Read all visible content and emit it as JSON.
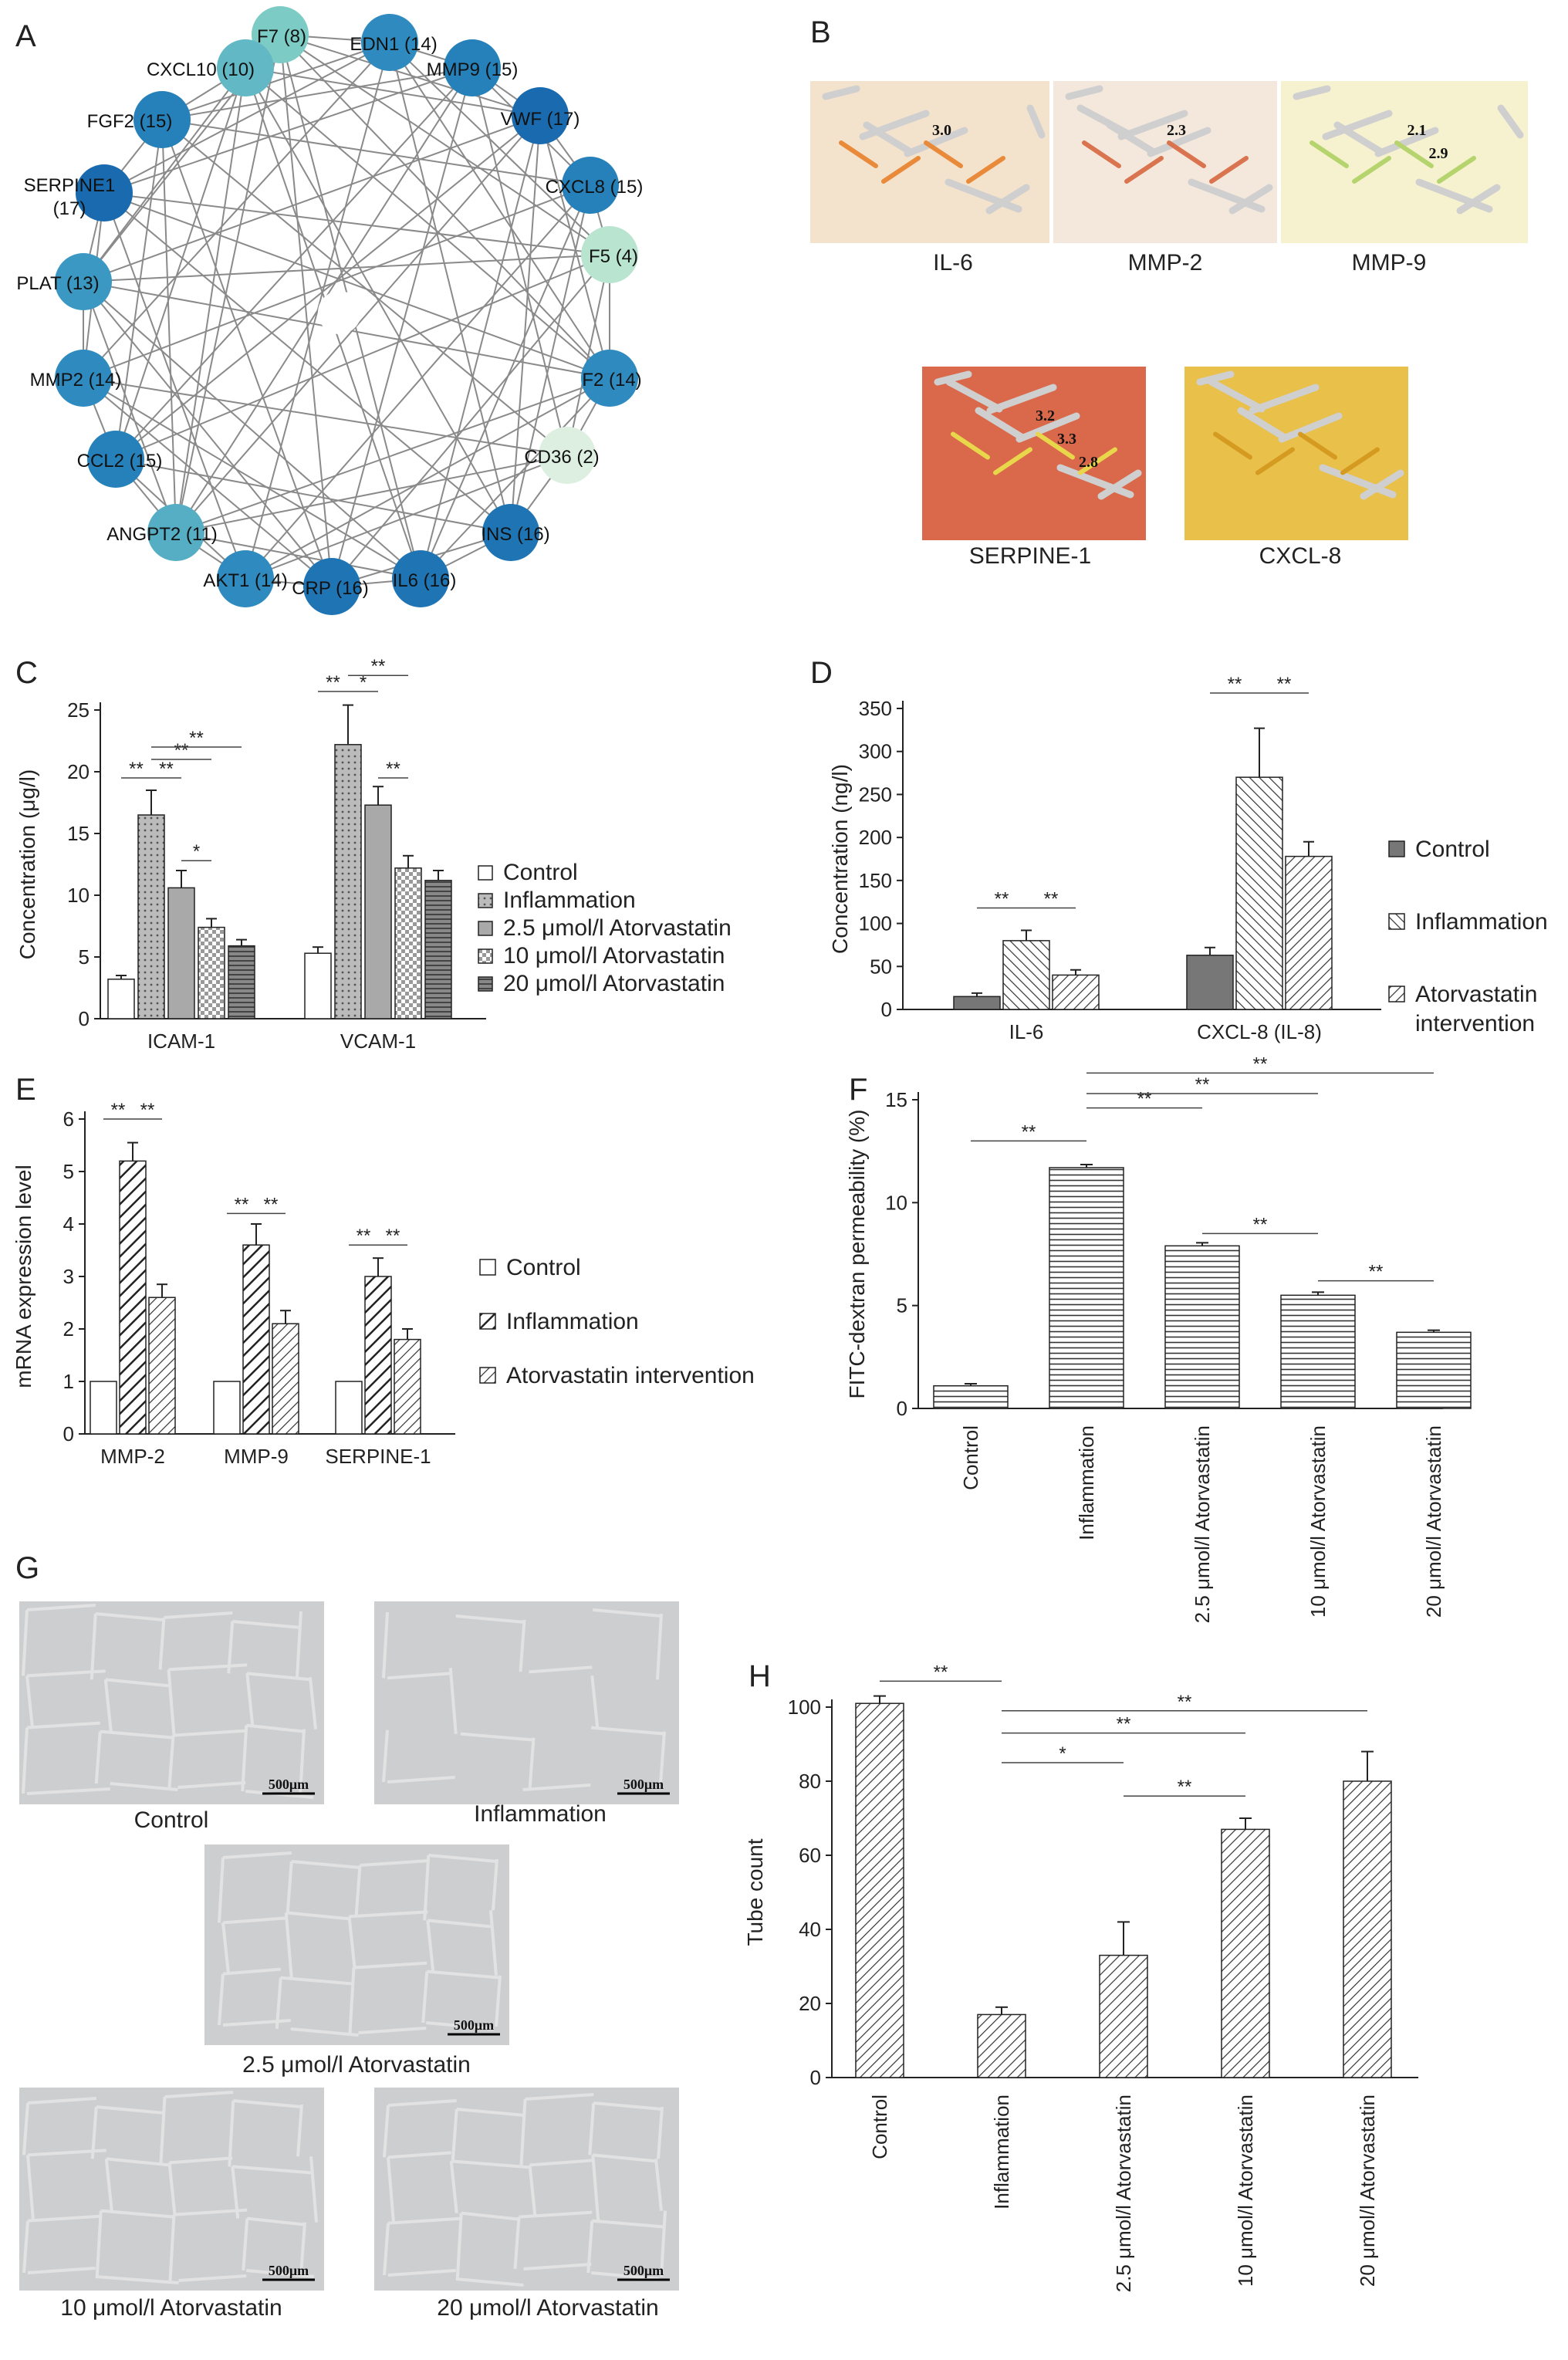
{
  "panel_labels": [
    "A",
    "B",
    "C",
    "D",
    "E",
    "F",
    "G",
    "H"
  ],
  "network": {
    "nodes": [
      {
        "label": "F7 (8)",
        "color": "#7ccbc5"
      },
      {
        "label": "EDN1 (14)",
        "color": "#2f8bbf"
      },
      {
        "label": "MMP9 (15)",
        "color": "#2680ba"
      },
      {
        "label": "VWF (17)",
        "color": "#1a6aaf"
      },
      {
        "label": "CXCL8 (15)",
        "color": "#2680ba"
      },
      {
        "label": "F5 (4)",
        "color": "#b9e4d0"
      },
      {
        "label": "F2 (14)",
        "color": "#2f8bbf"
      },
      {
        "label": "CD36 (2)",
        "color": "#dcefe0"
      },
      {
        "label": "INS (16)",
        "color": "#1f74b4"
      },
      {
        "label": "IL6 (16)",
        "color": "#1f74b4"
      },
      {
        "label": "CRP (16)",
        "color": "#1f74b4"
      },
      {
        "label": "AKT1 (14)",
        "color": "#2f8bbf"
      },
      {
        "label": "ANGPT2 (11)",
        "color": "#56aec4"
      },
      {
        "label": "CCL2 (15)",
        "color": "#2680ba"
      },
      {
        "label": "MMP2 (14)",
        "color": "#2f8bbf"
      },
      {
        "label": "PLAT (13)",
        "color": "#3b98c2"
      },
      {
        "label": "SERPINE1",
        "label2": "(17)",
        "color": "#1a6aaf"
      },
      {
        "label": "FGF2 (15)",
        "color": "#2680ba"
      },
      {
        "label": "CXCL10 (10)",
        "color": "#62b8c4"
      }
    ]
  },
  "docking": {
    "captions": [
      "IL-6",
      "MMP-2",
      "MMP-9",
      "SERPINE-1",
      "CXCL-8"
    ],
    "distances": [
      [
        "3.0"
      ],
      [
        "2.3"
      ],
      [
        "2.1",
        "2.9"
      ],
      [
        "3.2",
        "3.3",
        "2.8"
      ],
      []
    ]
  },
  "micrographs": {
    "captions": [
      "Control",
      "Inflammation",
      "2.5 μmol/l Atorvastatin",
      "10 μmol/l Atorvastatin",
      "20 μmol/l Atorvastatin"
    ],
    "scale_label": "500μm"
  },
  "chart_data": [
    {
      "panel": "C",
      "type": "bar",
      "ylabel": "Concentration (μg/l)",
      "ylim": [
        0,
        25
      ],
      "yticks": [
        0,
        5,
        10,
        15,
        20,
        25
      ],
      "categories": [
        "ICAM-1",
        "VCAM-1"
      ],
      "series": [
        {
          "name": "Control",
          "values": [
            3.2,
            5.3
          ],
          "errors": [
            0.3,
            0.5
          ]
        },
        {
          "name": "Inflammation",
          "values": [
            16.5,
            22.2
          ],
          "errors": [
            2.0,
            3.2
          ]
        },
        {
          "name": "2.5 μmol/l Atorvastatin",
          "values": [
            10.6,
            17.3
          ],
          "errors": [
            1.4,
            1.5
          ]
        },
        {
          "name": "10 μmol/l Atorvastatin",
          "values": [
            7.4,
            12.2
          ],
          "errors": [
            0.7,
            1.0
          ]
        },
        {
          "name": "20 μmol/l Atorvastatin",
          "values": [
            5.9,
            11.2
          ],
          "errors": [
            0.5,
            0.8
          ]
        }
      ],
      "significance": [
        "**",
        "**",
        "**",
        "**",
        "*",
        "**",
        "*",
        "**",
        "**"
      ],
      "legend": "right"
    },
    {
      "panel": "D",
      "type": "bar",
      "ylabel": "Concentration (ng/l)",
      "ylim": [
        0,
        350
      ],
      "yticks": [
        0,
        50,
        100,
        150,
        200,
        250,
        300,
        350
      ],
      "categories": [
        "IL-6",
        "CXCL-8 (IL-8)"
      ],
      "series": [
        {
          "name": "Control",
          "values": [
            15,
            63
          ],
          "errors": [
            4,
            9
          ]
        },
        {
          "name": "Inflammation",
          "values": [
            80,
            270
          ],
          "errors": [
            12,
            57
          ]
        },
        {
          "name": "Atorvastatin intervention",
          "name2": "intervention",
          "name1": "Atorvastatin",
          "values": [
            40,
            178
          ],
          "errors": [
            6,
            17
          ]
        }
      ],
      "significance": [
        "**",
        "**",
        "**",
        "**"
      ],
      "legend": "right"
    },
    {
      "panel": "E",
      "type": "bar",
      "ylabel": "mRNA expression level",
      "ylim": [
        0,
        6
      ],
      "yticks": [
        0,
        1,
        2,
        3,
        4,
        5,
        6
      ],
      "categories": [
        "MMP-2",
        "MMP-9",
        "SERPINE-1"
      ],
      "series": [
        {
          "name": "Control",
          "values": [
            1,
            1,
            1
          ],
          "errors": [
            0,
            0,
            0
          ]
        },
        {
          "name": "Inflammation",
          "values": [
            5.2,
            3.6,
            3.0
          ],
          "errors": [
            0.35,
            0.4,
            0.35
          ]
        },
        {
          "name": "Atorvastatin intervention",
          "values": [
            2.6,
            2.1,
            1.8
          ],
          "errors": [
            0.25,
            0.25,
            0.2
          ]
        }
      ],
      "significance": [
        "**",
        "**",
        "**",
        "**",
        "**",
        "**"
      ],
      "legend": "right"
    },
    {
      "panel": "F",
      "type": "bar",
      "ylabel": "FITC-dextran permeability (%)",
      "ylim": [
        0,
        15
      ],
      "yticks": [
        0,
        5,
        10,
        15
      ],
      "categories": [
        "Control",
        "Inflammation",
        "2.5 μmol/l Atorvastatin",
        "10 μmol/l Atorvastatin",
        "20 μmol/l Atorvastatin"
      ],
      "values": [
        1.1,
        11.7,
        7.9,
        5.5,
        3.7
      ],
      "errors": [
        0.1,
        0.15,
        0.15,
        0.15,
        0.1
      ],
      "significance": [
        "**",
        "**",
        "**",
        "**",
        "**",
        "**"
      ]
    },
    {
      "panel": "H",
      "type": "bar",
      "ylabel": "Tube count",
      "ylim": [
        0,
        100
      ],
      "yticks": [
        0,
        20,
        40,
        60,
        80,
        100
      ],
      "categories": [
        "Control",
        "Inflammation",
        "2.5 μmol/l Atorvastatin",
        "10 μmol/l Atorvastatin",
        "20 μmol/l Atorvastatin"
      ],
      "values": [
        101,
        17,
        33,
        67,
        80
      ],
      "errors": [
        2,
        2,
        9,
        3,
        8
      ],
      "significance": [
        "**",
        "*",
        "**",
        "**",
        "**"
      ]
    }
  ]
}
